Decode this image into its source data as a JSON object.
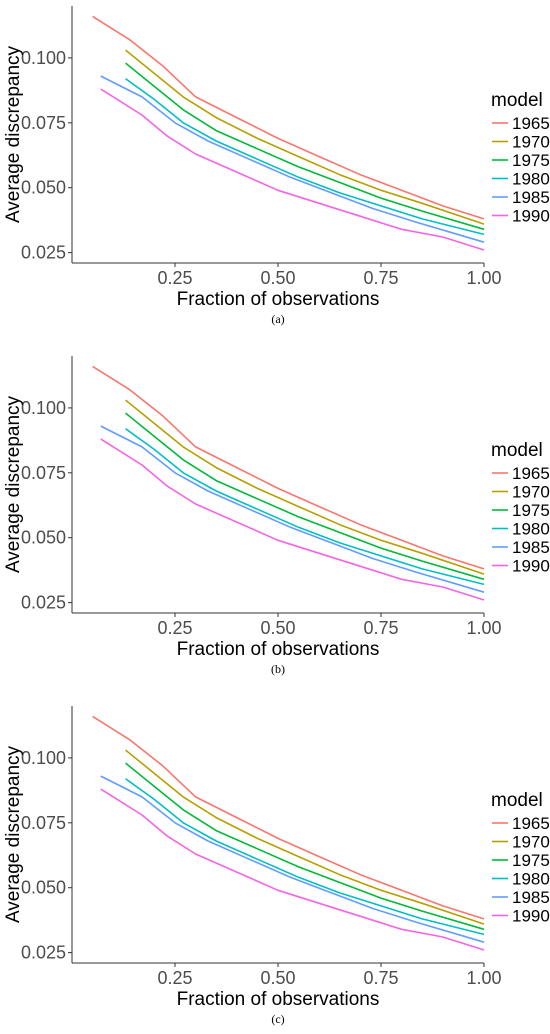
{
  "chart_data": [
    {
      "type": "line",
      "panel_label": "(a)",
      "xlabel": "Fraction of observations",
      "ylabel": "Average discrepancy",
      "xlim": [
        0.0,
        1.0
      ],
      "ylim": [
        0.021,
        0.12
      ],
      "x_ticks": [
        0.25,
        0.5,
        0.75,
        1.0
      ],
      "x_tick_labels": [
        "0.25",
        "0.50",
        "0.75",
        "1.00"
      ],
      "y_ticks": [
        0.025,
        0.05,
        0.075,
        0.1
      ],
      "y_tick_labels": [
        "0.025",
        "0.050",
        "0.075",
        "0.100"
      ],
      "grid": false,
      "legend": {
        "title": "model",
        "placement": "right"
      },
      "series": [
        {
          "name": "1965",
          "color": "#F8766D",
          "x": [
            0.05,
            0.14,
            0.22,
            0.3,
            0.4,
            0.5,
            0.6,
            0.7,
            0.8,
            0.9,
            1.0
          ],
          "values": [
            0.116,
            0.107,
            0.097,
            0.085,
            0.077,
            0.069,
            0.062,
            0.055,
            0.049,
            0.043,
            0.038
          ]
        },
        {
          "name": "1970",
          "color": "#B79F00",
          "x": [
            0.13,
            0.2,
            0.27,
            0.35,
            0.45,
            0.55,
            0.65,
            0.75,
            0.85,
            1.0
          ],
          "values": [
            0.103,
            0.094,
            0.085,
            0.077,
            0.069,
            0.062,
            0.055,
            0.049,
            0.044,
            0.036
          ]
        },
        {
          "name": "1975",
          "color": "#00BA38",
          "x": [
            0.13,
            0.2,
            0.27,
            0.35,
            0.45,
            0.55,
            0.65,
            0.75,
            0.85,
            1.0
          ],
          "values": [
            0.098,
            0.089,
            0.08,
            0.072,
            0.065,
            0.058,
            0.052,
            0.046,
            0.041,
            0.034
          ]
        },
        {
          "name": "1980",
          "color": "#00BFC4",
          "x": [
            0.13,
            0.2,
            0.27,
            0.35,
            0.45,
            0.55,
            0.65,
            0.75,
            0.85,
            1.0
          ],
          "values": [
            0.092,
            0.084,
            0.075,
            0.068,
            0.061,
            0.054,
            0.048,
            0.043,
            0.038,
            0.032
          ]
        },
        {
          "name": "1985",
          "color": "#619CFF",
          "x": [
            0.07,
            0.17,
            0.25,
            0.33,
            0.43,
            0.53,
            0.63,
            0.73,
            0.83,
            1.0
          ],
          "values": [
            0.093,
            0.085,
            0.075,
            0.068,
            0.061,
            0.054,
            0.048,
            0.042,
            0.037,
            0.029
          ]
        },
        {
          "name": "1990",
          "color": "#F564E3",
          "x": [
            0.07,
            0.17,
            0.23,
            0.3,
            0.4,
            0.5,
            0.6,
            0.7,
            0.8,
            0.9,
            1.0
          ],
          "values": [
            0.088,
            0.078,
            0.07,
            0.063,
            0.056,
            0.049,
            0.044,
            0.039,
            0.034,
            0.031,
            0.026
          ]
        }
      ]
    },
    {
      "type": "line",
      "panel_label": "(b)",
      "xlabel": "Fraction of observations",
      "ylabel": "Average discrepancy",
      "xlim": [
        0.0,
        1.0
      ],
      "ylim": [
        0.021,
        0.12
      ],
      "x_ticks": [
        0.25,
        0.5,
        0.75,
        1.0
      ],
      "x_tick_labels": [
        "0.25",
        "0.50",
        "0.75",
        "1.00"
      ],
      "y_ticks": [
        0.025,
        0.05,
        0.075,
        0.1
      ],
      "y_tick_labels": [
        "0.025",
        "0.050",
        "0.075",
        "0.100"
      ],
      "grid": false,
      "legend": {
        "title": "model",
        "placement": "right"
      },
      "series": [
        {
          "name": "1965",
          "color": "#F8766D",
          "x": [
            0.05,
            0.14,
            0.22,
            0.3,
            0.4,
            0.5,
            0.6,
            0.7,
            0.8,
            0.9,
            1.0
          ],
          "values": [
            0.116,
            0.107,
            0.097,
            0.085,
            0.077,
            0.069,
            0.062,
            0.055,
            0.049,
            0.043,
            0.038
          ]
        },
        {
          "name": "1970",
          "color": "#B79F00",
          "x": [
            0.13,
            0.2,
            0.27,
            0.35,
            0.45,
            0.55,
            0.65,
            0.75,
            0.85,
            1.0
          ],
          "values": [
            0.103,
            0.094,
            0.085,
            0.077,
            0.069,
            0.062,
            0.055,
            0.049,
            0.044,
            0.036
          ]
        },
        {
          "name": "1975",
          "color": "#00BA38",
          "x": [
            0.13,
            0.2,
            0.27,
            0.35,
            0.45,
            0.55,
            0.65,
            0.75,
            0.85,
            1.0
          ],
          "values": [
            0.098,
            0.089,
            0.08,
            0.072,
            0.065,
            0.058,
            0.052,
            0.046,
            0.041,
            0.034
          ]
        },
        {
          "name": "1980",
          "color": "#00BFC4",
          "x": [
            0.13,
            0.2,
            0.27,
            0.35,
            0.45,
            0.55,
            0.65,
            0.75,
            0.85,
            1.0
          ],
          "values": [
            0.092,
            0.084,
            0.075,
            0.068,
            0.061,
            0.054,
            0.048,
            0.043,
            0.038,
            0.032
          ]
        },
        {
          "name": "1985",
          "color": "#619CFF",
          "x": [
            0.07,
            0.17,
            0.25,
            0.33,
            0.43,
            0.53,
            0.63,
            0.73,
            0.83,
            1.0
          ],
          "values": [
            0.093,
            0.085,
            0.075,
            0.068,
            0.061,
            0.054,
            0.048,
            0.042,
            0.037,
            0.029
          ]
        },
        {
          "name": "1990",
          "color": "#F564E3",
          "x": [
            0.07,
            0.17,
            0.23,
            0.3,
            0.4,
            0.5,
            0.6,
            0.7,
            0.8,
            0.9,
            1.0
          ],
          "values": [
            0.088,
            0.078,
            0.07,
            0.063,
            0.056,
            0.049,
            0.044,
            0.039,
            0.034,
            0.031,
            0.026
          ]
        }
      ]
    },
    {
      "type": "line",
      "panel_label": "(c)",
      "xlabel": "Fraction of observations",
      "ylabel": "Average discrepancy",
      "xlim": [
        0.0,
        1.0
      ],
      "ylim": [
        0.021,
        0.12
      ],
      "x_ticks": [
        0.25,
        0.5,
        0.75,
        1.0
      ],
      "x_tick_labels": [
        "0.25",
        "0.50",
        "0.75",
        "1.00"
      ],
      "y_ticks": [
        0.025,
        0.05,
        0.075,
        0.1
      ],
      "y_tick_labels": [
        "0.025",
        "0.050",
        "0.075",
        "0.100"
      ],
      "grid": false,
      "legend": {
        "title": "model",
        "placement": "right"
      },
      "series": [
        {
          "name": "1965",
          "color": "#F8766D",
          "x": [
            0.05,
            0.14,
            0.22,
            0.3,
            0.4,
            0.5,
            0.6,
            0.7,
            0.8,
            0.9,
            1.0
          ],
          "values": [
            0.116,
            0.107,
            0.097,
            0.085,
            0.077,
            0.069,
            0.062,
            0.055,
            0.049,
            0.043,
            0.038
          ]
        },
        {
          "name": "1970",
          "color": "#B79F00",
          "x": [
            0.13,
            0.2,
            0.27,
            0.35,
            0.45,
            0.55,
            0.65,
            0.75,
            0.85,
            1.0
          ],
          "values": [
            0.103,
            0.094,
            0.085,
            0.077,
            0.069,
            0.062,
            0.055,
            0.049,
            0.044,
            0.036
          ]
        },
        {
          "name": "1975",
          "color": "#00BA38",
          "x": [
            0.13,
            0.2,
            0.27,
            0.35,
            0.45,
            0.55,
            0.65,
            0.75,
            0.85,
            1.0
          ],
          "values": [
            0.098,
            0.089,
            0.08,
            0.072,
            0.065,
            0.058,
            0.052,
            0.046,
            0.041,
            0.034
          ]
        },
        {
          "name": "1980",
          "color": "#00BFC4",
          "x": [
            0.13,
            0.2,
            0.27,
            0.35,
            0.45,
            0.55,
            0.65,
            0.75,
            0.85,
            1.0
          ],
          "values": [
            0.092,
            0.084,
            0.075,
            0.068,
            0.061,
            0.054,
            0.048,
            0.043,
            0.038,
            0.032
          ]
        },
        {
          "name": "1985",
          "color": "#619CFF",
          "x": [
            0.07,
            0.17,
            0.25,
            0.33,
            0.43,
            0.53,
            0.63,
            0.73,
            0.83,
            1.0
          ],
          "values": [
            0.093,
            0.085,
            0.075,
            0.068,
            0.061,
            0.054,
            0.048,
            0.042,
            0.037,
            0.029
          ]
        },
        {
          "name": "1990",
          "color": "#F564E3",
          "x": [
            0.07,
            0.17,
            0.23,
            0.3,
            0.4,
            0.5,
            0.6,
            0.7,
            0.8,
            0.9,
            1.0
          ],
          "values": [
            0.088,
            0.078,
            0.07,
            0.063,
            0.056,
            0.049,
            0.044,
            0.039,
            0.034,
            0.031,
            0.026
          ]
        }
      ]
    }
  ]
}
